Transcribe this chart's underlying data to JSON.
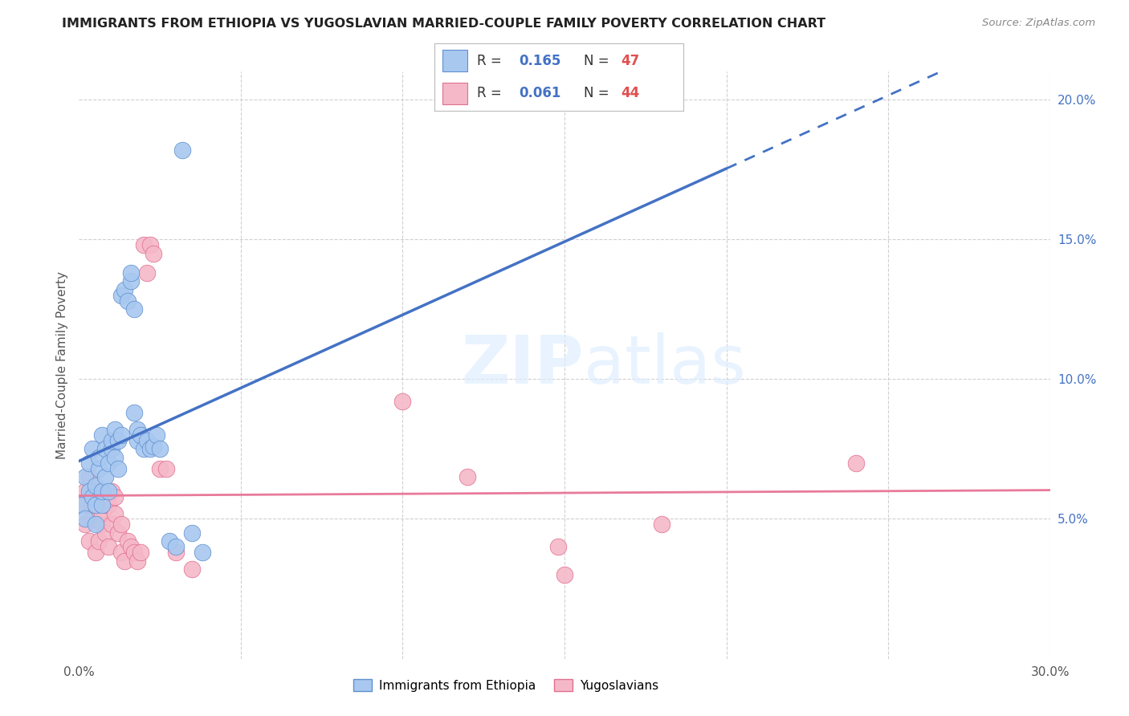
{
  "title": "IMMIGRANTS FROM ETHIOPIA VS YUGOSLAVIAN MARRIED-COUPLE FAMILY POVERTY CORRELATION CHART",
  "source": "Source: ZipAtlas.com",
  "ylabel": "Married-Couple Family Poverty",
  "xlim": [
    0.0,
    0.3
  ],
  "ylim": [
    0.0,
    0.21
  ],
  "color_ethiopia": "#a8c8f0",
  "color_yugoslav": "#f5b8c8",
  "color_line_ethiopia": "#4472c4",
  "color_line_yugoslav": "#e87a9a",
  "R_ethiopia": 0.165,
  "N_ethiopia": 47,
  "R_yugoslav": 0.061,
  "N_yugoslav": 44,
  "watermark_text": "ZIPatlas",
  "ethiopia_x": [
    0.001,
    0.002,
    0.002,
    0.003,
    0.003,
    0.004,
    0.004,
    0.005,
    0.005,
    0.005,
    0.006,
    0.006,
    0.007,
    0.007,
    0.007,
    0.008,
    0.008,
    0.009,
    0.009,
    0.01,
    0.01,
    0.011,
    0.011,
    0.012,
    0.012,
    0.013,
    0.013,
    0.014,
    0.015,
    0.016,
    0.016,
    0.017,
    0.017,
    0.018,
    0.018,
    0.019,
    0.02,
    0.021,
    0.022,
    0.023,
    0.024,
    0.025,
    0.028,
    0.03,
    0.035,
    0.038,
    0.032
  ],
  "ethiopia_y": [
    0.055,
    0.05,
    0.065,
    0.06,
    0.07,
    0.058,
    0.075,
    0.055,
    0.062,
    0.048,
    0.068,
    0.072,
    0.055,
    0.06,
    0.08,
    0.065,
    0.075,
    0.06,
    0.07,
    0.075,
    0.078,
    0.072,
    0.082,
    0.078,
    0.068,
    0.08,
    0.13,
    0.132,
    0.128,
    0.135,
    0.138,
    0.125,
    0.088,
    0.082,
    0.078,
    0.08,
    0.075,
    0.078,
    0.075,
    0.076,
    0.08,
    0.075,
    0.042,
    0.04,
    0.045,
    0.038,
    0.182
  ],
  "yugoslav_x": [
    0.001,
    0.002,
    0.002,
    0.003,
    0.003,
    0.004,
    0.004,
    0.005,
    0.005,
    0.006,
    0.006,
    0.007,
    0.007,
    0.008,
    0.008,
    0.009,
    0.009,
    0.01,
    0.01,
    0.011,
    0.011,
    0.012,
    0.013,
    0.013,
    0.014,
    0.015,
    0.016,
    0.017,
    0.018,
    0.019,
    0.02,
    0.021,
    0.022,
    0.023,
    0.025,
    0.027,
    0.03,
    0.035,
    0.1,
    0.12,
    0.148,
    0.15,
    0.24,
    0.18
  ],
  "yugoslav_y": [
    0.055,
    0.048,
    0.06,
    0.042,
    0.065,
    0.05,
    0.055,
    0.038,
    0.058,
    0.042,
    0.06,
    0.048,
    0.052,
    0.055,
    0.045,
    0.04,
    0.055,
    0.048,
    0.06,
    0.052,
    0.058,
    0.045,
    0.038,
    0.048,
    0.035,
    0.042,
    0.04,
    0.038,
    0.035,
    0.038,
    0.148,
    0.138,
    0.148,
    0.145,
    0.068,
    0.068,
    0.038,
    0.032,
    0.092,
    0.065,
    0.04,
    0.03,
    0.07,
    0.048
  ]
}
